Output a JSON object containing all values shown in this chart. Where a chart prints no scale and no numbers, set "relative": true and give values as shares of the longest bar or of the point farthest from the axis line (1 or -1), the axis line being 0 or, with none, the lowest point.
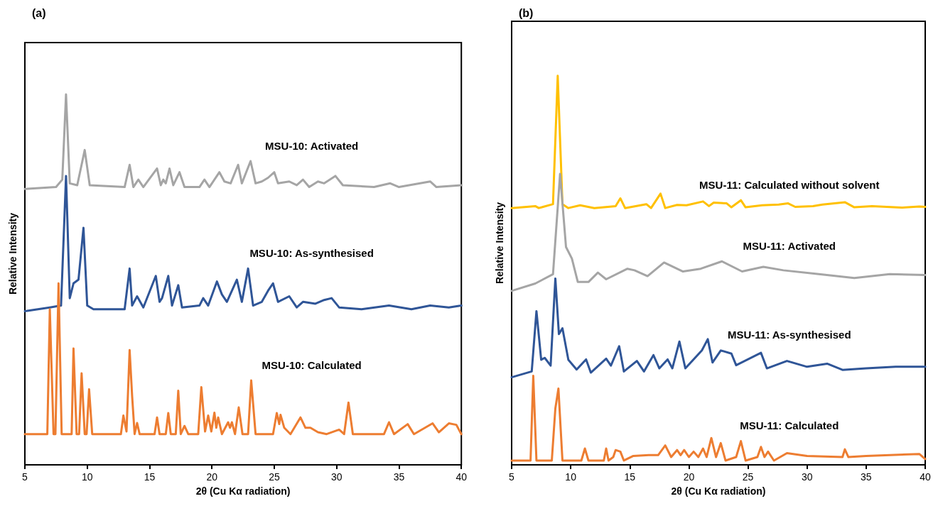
{
  "chart_data": [
    {
      "type": "line",
      "title": "(a)",
      "xlabel": "2θ (Cu Kα radiation)",
      "ylabel": "Relative Intensity",
      "relative": true,
      "xlim": [
        5,
        40
      ],
      "xticks": [
        5,
        10,
        15,
        20,
        25,
        30,
        35,
        40
      ],
      "grid": false,
      "legend": false,
      "marker": "none",
      "line_style": "solid",
      "series": [
        {
          "name": "MSU-10: Activated",
          "color": "#a5a5a5",
          "x": [
            5,
            7.5,
            8.0,
            8.3,
            8.6,
            9.2,
            9.8,
            10.2,
            13.0,
            13.4,
            13.7,
            14.1,
            14.5,
            15.6,
            15.9,
            16.1,
            16.3,
            16.6,
            16.9,
            17.4,
            17.8,
            19.0,
            19.4,
            19.8,
            20.4,
            20.6,
            21.0,
            21.5,
            22.1,
            22.4,
            23.1,
            23.5,
            24.0,
            24.5,
            25.0,
            25.3,
            26.2,
            26.8,
            27.3,
            27.8,
            28.5,
            29.0,
            29.9,
            30.5,
            33,
            34.3,
            35,
            37.5,
            38,
            40
          ],
          "values": [
            0.745,
            0.75,
            0.77,
            1.0,
            0.76,
            0.755,
            0.85,
            0.755,
            0.75,
            0.81,
            0.75,
            0.77,
            0.75,
            0.8,
            0.755,
            0.77,
            0.76,
            0.8,
            0.755,
            0.79,
            0.75,
            0.75,
            0.77,
            0.75,
            0.78,
            0.79,
            0.765,
            0.76,
            0.81,
            0.76,
            0.82,
            0.76,
            0.765,
            0.775,
            0.79,
            0.76,
            0.765,
            0.755,
            0.77,
            0.75,
            0.765,
            0.76,
            0.78,
            0.755,
            0.75,
            0.76,
            0.75,
            0.765,
            0.75,
            0.755
          ]
        },
        {
          "name": "MSU-10: As-synthesised",
          "color": "#2f5597",
          "x": [
            5,
            7.0,
            7.9,
            8.3,
            8.6,
            8.9,
            9.3,
            9.7,
            10.0,
            10.5,
            13.0,
            13.4,
            13.6,
            14.0,
            14.5,
            15.5,
            15.8,
            16.0,
            16.5,
            16.8,
            17.3,
            17.6,
            19.0,
            19.3,
            19.7,
            20.4,
            20.8,
            21.2,
            22.0,
            22.4,
            22.9,
            23.3,
            24.0,
            24.5,
            24.9,
            25.3,
            26.2,
            26.8,
            27.3,
            28.3,
            29.0,
            29.6,
            30.2,
            32,
            34.2,
            36,
            37.5,
            39,
            40
          ],
          "values": [
            0.415,
            0.425,
            0.43,
            0.78,
            0.45,
            0.49,
            0.5,
            0.64,
            0.43,
            0.42,
            0.42,
            0.53,
            0.43,
            0.455,
            0.425,
            0.51,
            0.44,
            0.45,
            0.51,
            0.43,
            0.485,
            0.425,
            0.43,
            0.45,
            0.43,
            0.495,
            0.46,
            0.44,
            0.5,
            0.44,
            0.53,
            0.43,
            0.44,
            0.47,
            0.49,
            0.44,
            0.455,
            0.425,
            0.44,
            0.435,
            0.445,
            0.45,
            0.425,
            0.42,
            0.43,
            0.42,
            0.43,
            0.425,
            0.43
          ]
        },
        {
          "name": "MSU-10: Calculated",
          "color": "#ed7d31",
          "x": [
            5,
            6.8,
            7.0,
            7.3,
            7.45,
            7.7,
            7.95,
            8.75,
            8.9,
            9.15,
            9.35,
            9.55,
            9.8,
            9.95,
            10.15,
            10.4,
            12.7,
            12.9,
            13.15,
            13.4,
            13.6,
            13.8,
            14.0,
            14.2,
            15.4,
            15.6,
            15.8,
            16.3,
            16.5,
            16.7,
            17.1,
            17.3,
            17.5,
            17.8,
            18.1,
            18.9,
            19.15,
            19.45,
            19.7,
            19.95,
            20.2,
            20.35,
            20.5,
            20.8,
            21.3,
            21.45,
            21.6,
            21.85,
            22.15,
            22.45,
            22.9,
            23.15,
            23.5,
            24.9,
            25.2,
            25.4,
            25.5,
            25.8,
            26.3,
            27.1,
            27.5,
            27.9,
            28.5,
            29.2,
            30.2,
            30.6,
            30.95,
            31.3,
            33.8,
            34.2,
            34.6,
            35.7,
            36.2,
            37.7,
            38.2,
            39,
            39.6,
            40
          ],
          "values": [
            0.083,
            0.083,
            0.42,
            0.083,
            0.083,
            0.49,
            0.083,
            0.083,
            0.314,
            0.083,
            0.083,
            0.247,
            0.083,
            0.083,
            0.204,
            0.083,
            0.083,
            0.133,
            0.09,
            0.31,
            0.186,
            0.083,
            0.113,
            0.083,
            0.083,
            0.128,
            0.083,
            0.083,
            0.14,
            0.083,
            0.083,
            0.2,
            0.083,
            0.105,
            0.083,
            0.083,
            0.21,
            0.09,
            0.133,
            0.09,
            0.141,
            0.1,
            0.128,
            0.083,
            0.115,
            0.1,
            0.115,
            0.083,
            0.155,
            0.083,
            0.083,
            0.228,
            0.083,
            0.083,
            0.14,
            0.11,
            0.135,
            0.1,
            0.083,
            0.128,
            0.1,
            0.1,
            0.088,
            0.083,
            0.095,
            0.083,
            0.168,
            0.083,
            0.083,
            0.115,
            0.083,
            0.11,
            0.083,
            0.112,
            0.088,
            0.112,
            0.108,
            0.083
          ]
        }
      ]
    },
    {
      "type": "line",
      "title": "(b)",
      "xlabel": "2θ (Cu Kα radiation)",
      "ylabel": "Relative Intensity",
      "relative": true,
      "xlim": [
        5,
        40
      ],
      "xticks": [
        5,
        10,
        15,
        20,
        25,
        30,
        35,
        40
      ],
      "grid": false,
      "legend": false,
      "marker": "none",
      "line_style": "solid",
      "series": [
        {
          "name": "MSU-11: Calculated without solvent",
          "color": "#ffc000",
          "x": [
            5,
            7.0,
            7.3,
            8.5,
            8.9,
            9.3,
            9.8,
            10.8,
            12,
            13.8,
            14.2,
            14.6,
            16.4,
            16.8,
            17.6,
            18.0,
            19.0,
            19.8,
            21.2,
            21.7,
            22.1,
            23.2,
            23.6,
            24.4,
            24.8,
            26.2,
            27.6,
            28.4,
            29.0,
            30.5,
            31.3,
            33.2,
            34,
            35.5,
            38,
            39.5,
            40
          ],
          "values": [
            0.66,
            0.665,
            0.66,
            0.67,
            1.0,
            0.67,
            0.66,
            0.667,
            0.66,
            0.665,
            0.685,
            0.66,
            0.67,
            0.66,
            0.697,
            0.66,
            0.668,
            0.667,
            0.677,
            0.665,
            0.674,
            0.672,
            0.662,
            0.68,
            0.662,
            0.667,
            0.669,
            0.672,
            0.663,
            0.665,
            0.669,
            0.675,
            0.662,
            0.665,
            0.661,
            0.664,
            0.663
          ]
        },
        {
          "name": "MSU-11: Activated",
          "color": "#a5a5a5",
          "x": [
            5,
            7.0,
            8.5,
            9.1,
            9.6,
            10.1,
            10.6,
            11.5,
            12.3,
            13,
            14.8,
            15.4,
            16.5,
            17.9,
            19.5,
            21,
            22.8,
            24.5,
            26.3,
            28,
            31,
            34,
            37,
            40
          ],
          "values": [
            0.447,
            0.466,
            0.49,
            0.748,
            0.56,
            0.53,
            0.47,
            0.47,
            0.494,
            0.477,
            0.504,
            0.5,
            0.485,
            0.52,
            0.497,
            0.504,
            0.523,
            0.497,
            0.509,
            0.5,
            0.49,
            0.48,
            0.49,
            0.488
          ]
        },
        {
          "name": "MSU-11: As-synthesised",
          "color": "#2f5597",
          "x": [
            5,
            6.7,
            7.1,
            7.5,
            7.8,
            8.3,
            8.7,
            9.0,
            9.3,
            9.8,
            10.5,
            11.3,
            11.7,
            13.0,
            13.4,
            14.1,
            14.5,
            15.6,
            16.2,
            17.0,
            17.5,
            18.2,
            18.6,
            19.2,
            19.7,
            21.1,
            21.6,
            22.0,
            22.7,
            23.6,
            24.0,
            26.1,
            26.6,
            28.3,
            30,
            31.7,
            33,
            35,
            37.5,
            40
          ],
          "values": [
            0.225,
            0.24,
            0.395,
            0.27,
            0.275,
            0.255,
            0.479,
            0.336,
            0.351,
            0.27,
            0.245,
            0.271,
            0.237,
            0.273,
            0.255,
            0.305,
            0.24,
            0.267,
            0.24,
            0.282,
            0.248,
            0.271,
            0.248,
            0.317,
            0.248,
            0.294,
            0.323,
            0.263,
            0.294,
            0.286,
            0.256,
            0.288,
            0.248,
            0.267,
            0.252,
            0.26,
            0.244,
            0.248,
            0.252,
            0.252
          ]
        },
        {
          "name": "MSU-11: Calculated",
          "color": "#ed7d31",
          "x": [
            5,
            6.6,
            6.83,
            7.1,
            8.4,
            8.7,
            8.96,
            9.3,
            10.9,
            11.2,
            11.5,
            12.8,
            13.0,
            13.2,
            13.6,
            13.8,
            14.2,
            14.5,
            15.3,
            16.6,
            17.4,
            18.0,
            18.5,
            19.0,
            19.3,
            19.6,
            20.0,
            20.4,
            20.8,
            21.2,
            21.5,
            21.9,
            22.3,
            22.7,
            23.1,
            24.0,
            24.4,
            24.8,
            25.8,
            26.1,
            26.4,
            26.7,
            27.2,
            28.3,
            30,
            33.0,
            33.2,
            33.5,
            35,
            39.5,
            40
          ],
          "values": [
            0.011,
            0.011,
            0.229,
            0.011,
            0.011,
            0.145,
            0.196,
            0.011,
            0.011,
            0.042,
            0.011,
            0.011,
            0.042,
            0.011,
            0.02,
            0.038,
            0.034,
            0.011,
            0.023,
            0.025,
            0.025,
            0.05,
            0.02,
            0.038,
            0.025,
            0.038,
            0.02,
            0.034,
            0.02,
            0.042,
            0.02,
            0.069,
            0.02,
            0.056,
            0.011,
            0.02,
            0.061,
            0.011,
            0.02,
            0.046,
            0.02,
            0.034,
            0.011,
            0.03,
            0.023,
            0.02,
            0.04,
            0.02,
            0.023,
            0.028,
            0.015
          ]
        }
      ]
    }
  ]
}
